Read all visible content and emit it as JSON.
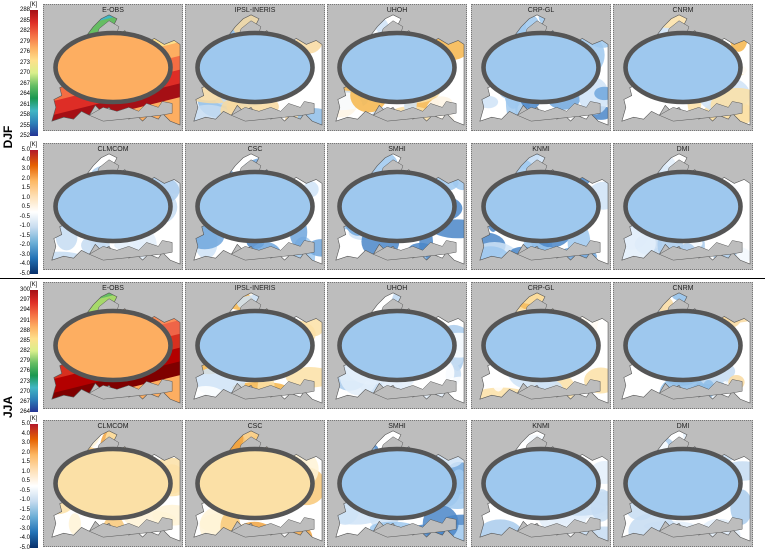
{
  "seasons": [
    "DJF",
    "JJA"
  ],
  "unit": "[K]",
  "colorbars": {
    "djf_abs": [
      "288",
      "285",
      "282",
      "279",
      "276",
      "273",
      "270",
      "267",
      "264",
      "261",
      "258",
      "255",
      "252"
    ],
    "djf_bias": [
      "5.0",
      "4.0",
      "3.0",
      "2.0",
      "1.5",
      "1.0",
      "0.5",
      "-0.5",
      "-1.0",
      "-1.5",
      "-2.0",
      "-3.0",
      "-4.0",
      "-5.0"
    ],
    "jja_abs": [
      "300",
      "297",
      "294",
      "291",
      "288",
      "285",
      "282",
      "279",
      "276",
      "273",
      "270",
      "267",
      "264"
    ],
    "jja_bias": [
      "5.0",
      "4.0",
      "3.0",
      "2.0",
      "1.5",
      "1.0",
      "0.5",
      "-0.5",
      "-1.0",
      "-1.5",
      "-2.0",
      "-3.0",
      "-4.0",
      "-5.0"
    ]
  },
  "rows": [
    {
      "panels": [
        {
          "label": "E-OBS",
          "style": "abs"
        },
        {
          "label": "IPSL-INERIS",
          "style": "mixcold"
        },
        {
          "label": "UHOH",
          "style": "mixwarm"
        },
        {
          "label": "CRP-GL",
          "style": "cold"
        },
        {
          "label": "CNRM",
          "style": "mixwarm"
        }
      ]
    },
    {
      "panels": [
        {
          "label": "CLMCOM",
          "style": "lightcold"
        },
        {
          "label": "CSC",
          "style": "cold"
        },
        {
          "label": "SMHI",
          "style": "cold"
        },
        {
          "label": "KNMI",
          "style": "cold"
        },
        {
          "label": "DMI",
          "style": "lightcold"
        }
      ]
    },
    {
      "panels": [
        {
          "label": "E-OBS",
          "style": "abs"
        },
        {
          "label": "IPSL-INERIS",
          "style": "mixwarm"
        },
        {
          "label": "UHOH",
          "style": "lightcold"
        },
        {
          "label": "CRP-GL",
          "style": "mixwarm"
        },
        {
          "label": "CNRM",
          "style": "mixcold"
        }
      ]
    },
    {
      "panels": [
        {
          "label": "CLMCOM",
          "style": "warm"
        },
        {
          "label": "CSC",
          "style": "warm"
        },
        {
          "label": "SMHI",
          "style": "cold"
        },
        {
          "label": "KNMI",
          "style": "lightcold"
        },
        {
          "label": "DMI",
          "style": "lightcold"
        }
      ]
    }
  ],
  "colors": {
    "sea": "#bdbdbd",
    "cold_dark": "#3b6fb6",
    "cold_mid": "#7fb2e5",
    "cold_light": "#cfe3f7",
    "neutral": "#ffffff",
    "warm_light": "#fbe0a6",
    "warm_mid": "#f6b54a",
    "abs_hot": "#d7301f",
    "abs_mid": "#7fc241",
    "abs_cold": "#2b8cbe"
  }
}
